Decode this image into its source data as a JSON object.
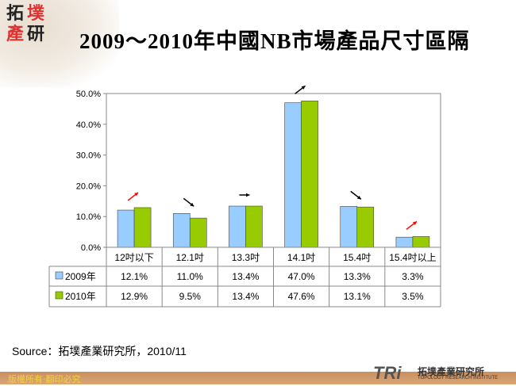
{
  "logo": {
    "chars": [
      "拓",
      "墣",
      "產",
      "研"
    ]
  },
  "title": "2009～2010年中國NB市場產品尺寸區隔",
  "chart_data": {
    "type": "bar",
    "categories": [
      "12吋以下",
      "12.1吋",
      "13.3吋",
      "14.1吋",
      "15.4吋",
      "15.4吋以上"
    ],
    "series": [
      {
        "name": "2009年",
        "color": "#99ccff",
        "values": [
          12.1,
          11.0,
          13.4,
          47.0,
          13.3,
          3.3
        ],
        "labels": [
          "12.1%",
          "11.0%",
          "13.4%",
          "47.0%",
          "13.3%",
          "3.3%"
        ]
      },
      {
        "name": "2010年",
        "color": "#99cc00",
        "values": [
          12.9,
          9.5,
          13.4,
          47.6,
          13.1,
          3.5
        ],
        "labels": [
          "12.9%",
          "9.5%",
          "13.4%",
          "47.6%",
          "13.1%",
          "3.5%"
        ]
      }
    ],
    "yticks": [
      "0.0%",
      "10.0%",
      "20.0%",
      "30.0%",
      "40.0%",
      "50.0%"
    ],
    "ylim": [
      0,
      50
    ],
    "legend": "data-table",
    "trend_arrows": [
      {
        "dir": "up",
        "color": "#ff0000"
      },
      {
        "dir": "down",
        "color": "#000000"
      },
      {
        "dir": "flat",
        "color": "#000000"
      },
      {
        "dir": "up",
        "color": "#000000"
      },
      {
        "dir": "down",
        "color": "#000000"
      },
      {
        "dir": "up",
        "color": "#ff0000"
      }
    ]
  },
  "source": "Source：拓墣產業研究所，2010/11",
  "footer": {
    "copyright": "版權所有‧翻印必究",
    "brand": "TRi",
    "brand_cn": "拓墣產業研究所",
    "brand_en": "TOPOLOGY RESEARCH INSTITUTE"
  }
}
